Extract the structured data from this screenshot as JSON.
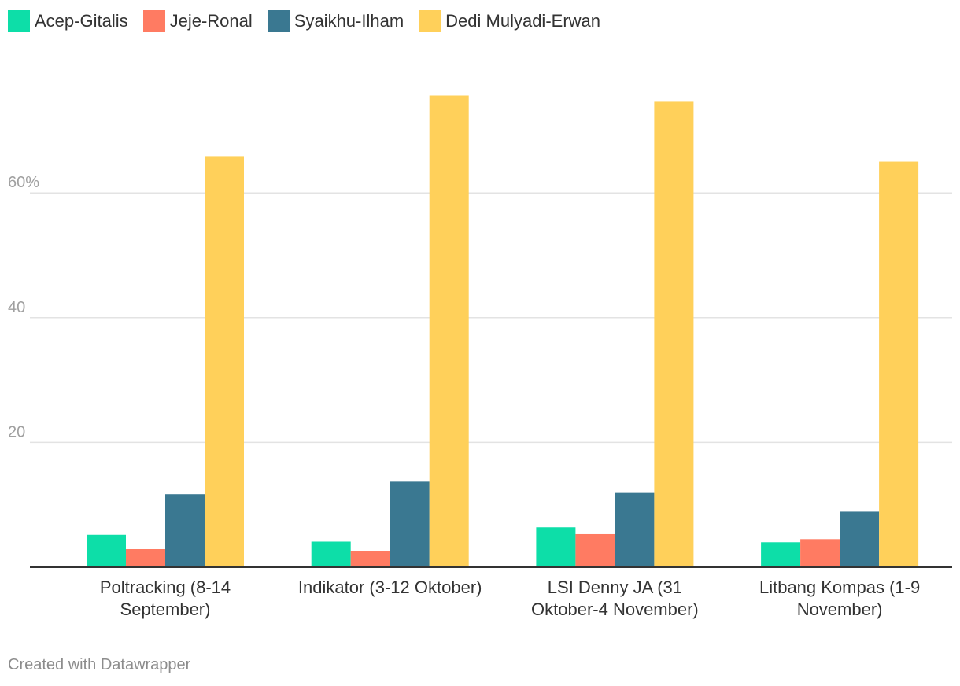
{
  "chart_data": {
    "type": "bar",
    "categories": [
      [
        "Poltracking (8-14",
        "September)"
      ],
      [
        "Indikator (3-12 Oktober)"
      ],
      [
        "LSI Denny JA (31",
        "Oktober-4 November)"
      ],
      [
        "Litbang Kompas (1-9",
        "November)"
      ]
    ],
    "series": [
      {
        "name": "Acep-Gitalis",
        "color": "#0ddea8",
        "values": [
          5.2,
          4.1,
          6.4,
          4.0
        ]
      },
      {
        "name": "Jeje-Ronal",
        "color": "#ff7b62",
        "values": [
          2.9,
          2.6,
          5.3,
          4.5
        ]
      },
      {
        "name": "Syaikhu-Ilham",
        "color": "#3a7891",
        "values": [
          11.7,
          13.7,
          11.9,
          8.9
        ]
      },
      {
        "name": "Dedi Mulyadi-Erwan",
        "color": "#ffd05a",
        "values": [
          65.9,
          75.6,
          74.6,
          65.0
        ]
      }
    ],
    "yticks": [
      {
        "value": 20,
        "label": "20"
      },
      {
        "value": 40,
        "label": "40"
      },
      {
        "value": 60,
        "label": "60%"
      }
    ],
    "ylim": [
      0,
      80
    ],
    "grid": true,
    "legend_position": "top-left"
  },
  "footer": {
    "credit": "Created with Datawrapper"
  }
}
